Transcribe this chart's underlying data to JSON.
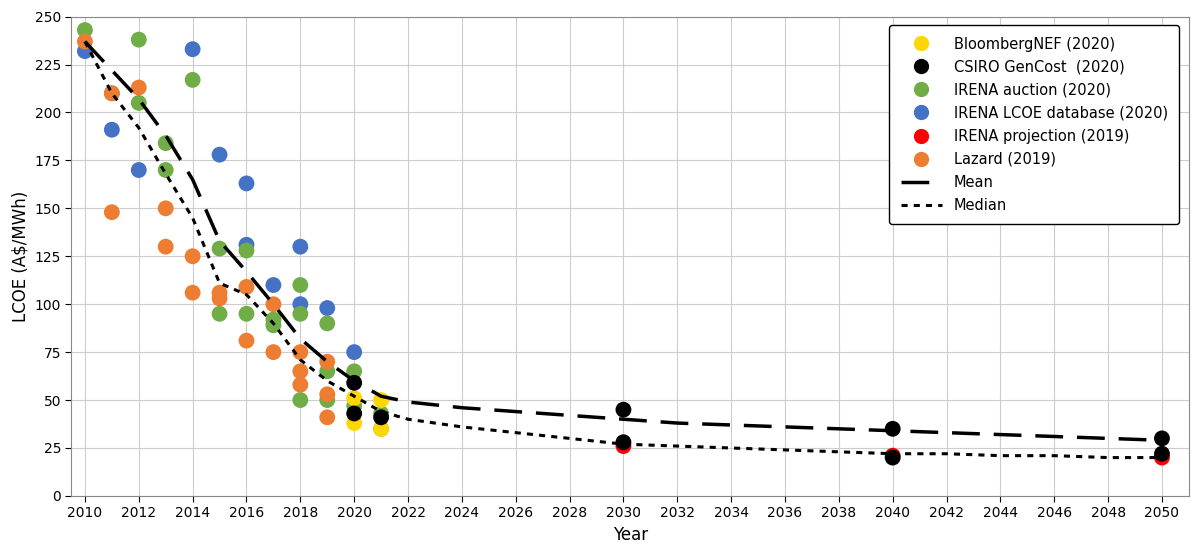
{
  "bloomberg_nef": {
    "x": [
      2020,
      2020,
      2021,
      2021
    ],
    "y": [
      51,
      38,
      50,
      35
    ],
    "color": "#FFD700",
    "label": "BloombergNEF (2020)",
    "zorder": 5
  },
  "csiro": {
    "x": [
      2020,
      2020,
      2021,
      2030,
      2030,
      2040,
      2040,
      2050,
      2050
    ],
    "y": [
      59,
      43,
      41,
      45,
      28,
      35,
      20,
      30,
      22
    ],
    "color": "#000000",
    "label": "CSIRO GenCost  (2020)",
    "zorder": 6
  },
  "irena_auction": {
    "x": [
      2010,
      2011,
      2012,
      2012,
      2013,
      2013,
      2014,
      2015,
      2015,
      2016,
      2016,
      2017,
      2017,
      2018,
      2018,
      2018,
      2019,
      2019,
      2019,
      2020,
      2020,
      2021,
      2021
    ],
    "y": [
      243,
      210,
      238,
      205,
      184,
      170,
      217,
      129,
      95,
      128,
      95,
      92,
      89,
      110,
      95,
      50,
      90,
      65,
      50,
      65,
      47,
      43,
      35
    ],
    "color": "#70AD47",
    "label": "IRENA auction (2020)",
    "zorder": 4
  },
  "irena_lcoe": {
    "x": [
      2010,
      2011,
      2012,
      2014,
      2015,
      2016,
      2016,
      2017,
      2018,
      2018,
      2019,
      2020
    ],
    "y": [
      232,
      191,
      170,
      233,
      178,
      163,
      131,
      110,
      130,
      100,
      98,
      75
    ],
    "color": "#4472C4",
    "label": "IRENA LCOE database (2020)",
    "zorder": 3
  },
  "irena_projection": {
    "x": [
      2030,
      2040,
      2050
    ],
    "y": [
      26,
      21,
      20
    ],
    "color": "#FF0000",
    "label": "IRENA projection (2019)",
    "zorder": 5
  },
  "lazard": {
    "x": [
      2010,
      2011,
      2011,
      2012,
      2013,
      2013,
      2014,
      2014,
      2015,
      2015,
      2016,
      2016,
      2017,
      2017,
      2018,
      2018,
      2018,
      2019,
      2019,
      2019
    ],
    "y": [
      237,
      210,
      148,
      213,
      150,
      130,
      125,
      106,
      106,
      103,
      109,
      81,
      100,
      75,
      75,
      65,
      58,
      70,
      53,
      41
    ],
    "color": "#ED7D31",
    "label": "Lazard (2019)",
    "zorder": 4
  },
  "mean_x": [
    2010,
    2011,
    2012,
    2013,
    2014,
    2015,
    2016,
    2017,
    2018,
    2019,
    2020,
    2021,
    2022,
    2024,
    2026,
    2028,
    2030,
    2032,
    2034,
    2036,
    2038,
    2040,
    2042,
    2044,
    2046,
    2048,
    2050
  ],
  "mean_y": [
    237,
    222,
    207,
    188,
    165,
    133,
    117,
    100,
    82,
    70,
    60,
    52,
    49,
    46,
    44,
    42,
    40,
    38,
    37,
    36,
    35,
    34,
    33,
    32,
    31,
    30,
    29
  ],
  "median_x": [
    2010,
    2011,
    2012,
    2013,
    2014,
    2015,
    2016,
    2017,
    2018,
    2019,
    2020,
    2021,
    2022,
    2024,
    2026,
    2028,
    2030,
    2032,
    2034,
    2036,
    2038,
    2040,
    2042,
    2044,
    2046,
    2048,
    2050
  ],
  "median_y": [
    237,
    210,
    192,
    168,
    145,
    111,
    105,
    90,
    71,
    60,
    52,
    44,
    40,
    36,
    33,
    30,
    27,
    26,
    25,
    24,
    23,
    22,
    22,
    21,
    21,
    20,
    20
  ],
  "xlabel": "Year",
  "ylabel": "LCOE (A$/MWh)",
  "xlim": [
    2009.5,
    2051
  ],
  "ylim": [
    0,
    250
  ],
  "xticks": [
    2010,
    2012,
    2014,
    2016,
    2018,
    2020,
    2022,
    2024,
    2026,
    2028,
    2030,
    2032,
    2034,
    2036,
    2038,
    2040,
    2042,
    2044,
    2046,
    2048,
    2050
  ],
  "yticks": [
    0,
    25,
    50,
    75,
    100,
    125,
    150,
    175,
    200,
    225,
    250
  ],
  "marker_size": 130,
  "bg_color": "#FFFFFF",
  "grid_color": "#CCCCCC",
  "legend_labels": [
    "BloombergNEF (2020)",
    "CSIRO GenCost  (2020)",
    "IRENA auction (2020)",
    "IRENA LCOE database (2020)",
    "IRENA projection (2019)",
    "Lazard (2019)",
    "Mean",
    "Median"
  ],
  "legend_colors": [
    "#FFD700",
    "#000000",
    "#70AD47",
    "#4472C4",
    "#FF0000",
    "#ED7D31",
    "line_dash",
    "line_dot"
  ]
}
